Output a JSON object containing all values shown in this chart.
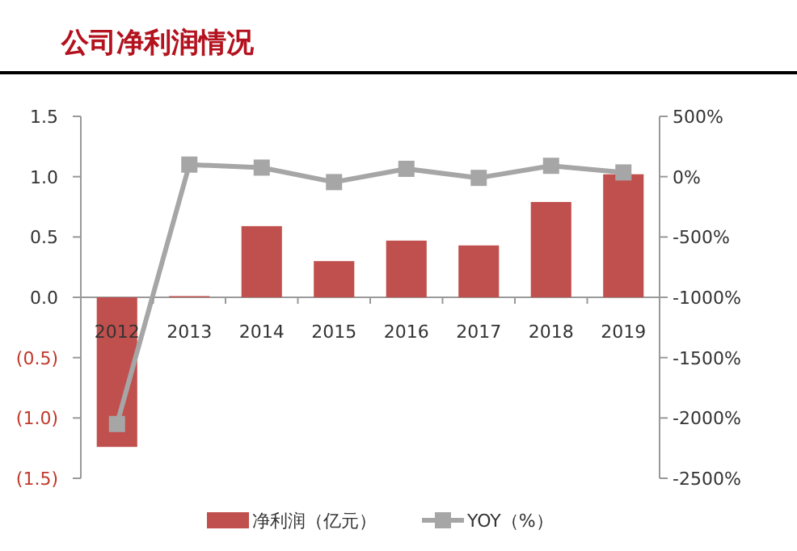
{
  "chart_data": {
    "type": "bar",
    "title": "公司净利润情况",
    "categories": [
      "2012",
      "2013",
      "2014",
      "2015",
      "2016",
      "2017",
      "2018",
      "2019"
    ],
    "series": [
      {
        "name": "净利润（亿元）",
        "color": "#c0504d",
        "values": [
          -1.24,
          0.01,
          0.59,
          0.3,
          0.47,
          0.43,
          0.79,
          1.02
        ]
      },
      {
        "name": "YOY（%）",
        "type": "line",
        "axis": "y2",
        "color": "#a6a6a6",
        "marker": "square",
        "values": [
          -2050,
          100,
          75,
          -45,
          65,
          -10,
          90,
          35
        ]
      }
    ],
    "ylim": [
      -1.5,
      1.5
    ],
    "yticks": [
      {
        "value": -1.5,
        "label": "(1.5)"
      },
      {
        "value": -1,
        "label": "(1.0)"
      },
      {
        "value": -0.5,
        "label": "(0.5)"
      },
      {
        "value": 0,
        "label": "0.0"
      },
      {
        "value": 0.5,
        "label": "0.5"
      },
      {
        "value": 1,
        "label": "1.0"
      },
      {
        "value": 1.5,
        "label": "1.5"
      }
    ],
    "y2lim": [
      -2500,
      500
    ],
    "y2ticks": [
      {
        "value": -2500,
        "label": "-2500%"
      },
      {
        "value": -2000,
        "label": "-2000%"
      },
      {
        "value": -1500,
        "label": "-1500%"
      },
      {
        "value": -1000,
        "label": "-1000%"
      },
      {
        "value": -500,
        "label": "-500%"
      },
      {
        "value": 0,
        "label": "0%"
      },
      {
        "value": 500,
        "label": "500%"
      }
    ],
    "grid": false,
    "legend": "bottom"
  }
}
